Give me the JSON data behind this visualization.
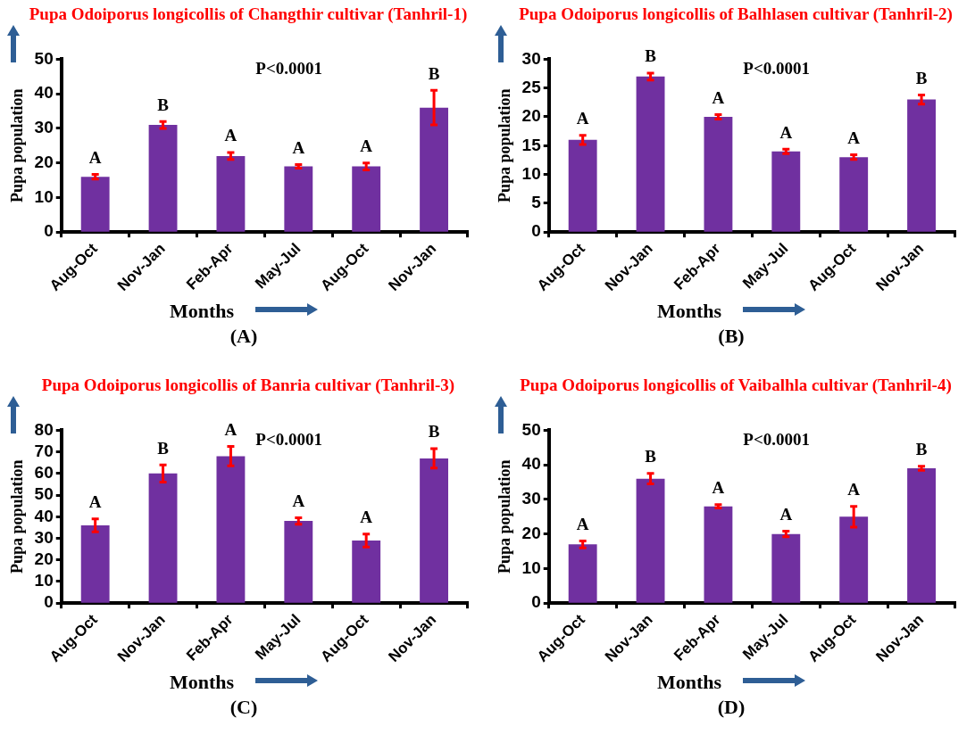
{
  "chart_data": [
    {
      "type": "bar",
      "title": "Pupa Odoiporus longicollis of Changthir cultivar (Tanhril-1)",
      "xlabel": "Months",
      "ylabel": "Pupa population",
      "categories": [
        "Aug-Oct",
        "Nov-Jan",
        "Feb-Apr",
        "May-Jul",
        "Aug-Oct",
        "Nov-Jan"
      ],
      "values": [
        16,
        31,
        22,
        19,
        19,
        36
      ],
      "errors": [
        0.7,
        1,
        1,
        0.5,
        1,
        5
      ],
      "value_labels": [
        "A",
        "B",
        "A",
        "A",
        "A",
        "B"
      ],
      "color": "#7030a0",
      "ylim": [
        0,
        50
      ],
      "yticks": [
        0,
        10,
        20,
        30,
        40,
        50
      ],
      "grid": false,
      "annotations": [
        "P<0.0001",
        "(A)"
      ]
    },
    {
      "type": "bar",
      "title": "Pupa Odoiporus longicollis of Balhlasen cultivar (Tanhril-2)",
      "xlabel": "Months",
      "ylabel": "Pupa population",
      "categories": [
        "Aug-Oct",
        "Nov-Jan",
        "Feb-Apr",
        "May-Jul",
        "Aug-Oct",
        "Nov-Jan"
      ],
      "values": [
        16,
        27,
        20,
        14,
        13,
        23
      ],
      "errors": [
        0.8,
        0.6,
        0.4,
        0.4,
        0.4,
        0.8
      ],
      "value_labels": [
        "A",
        "B",
        "A",
        "A",
        "A",
        "B"
      ],
      "color": "#7030a0",
      "ylim": [
        0,
        30
      ],
      "yticks": [
        0,
        5,
        10,
        15,
        20,
        25,
        30
      ],
      "grid": false,
      "annotations": [
        "P<0.0001",
        "(B)"
      ]
    },
    {
      "type": "bar",
      "title": "Pupa Odoiporus longicollis of Banria cultivar (Tanhril-3)",
      "xlabel": "Months",
      "ylabel": "Pupa population",
      "categories": [
        "Aug-Oct",
        "Nov-Jan",
        "Feb-Apr",
        "May-Jul",
        "Aug-Oct",
        "Nov-Jan"
      ],
      "values": [
        36,
        60,
        68,
        38,
        29,
        67
      ],
      "errors": [
        3,
        4,
        4.5,
        1.5,
        3,
        4.5
      ],
      "value_labels": [
        "A",
        "B",
        "A",
        "A",
        "A",
        "B"
      ],
      "color": "#7030a0",
      "ylim": [
        0,
        80
      ],
      "yticks": [
        0,
        10,
        20,
        30,
        40,
        50,
        60,
        70,
        80
      ],
      "grid": false,
      "annotations": [
        "P<0.0001",
        "(C)"
      ]
    },
    {
      "type": "bar",
      "title": "Pupa Odoiporus longicollis of Vaibalhla cultivar (Tanhril-4)",
      "xlabel": "Months",
      "ylabel": "Pupa population",
      "categories": [
        "Aug-Oct",
        "Nov-Jan",
        "Feb-Apr",
        "May-Jul",
        "Aug-Oct",
        "Nov-Jan"
      ],
      "values": [
        17,
        36,
        28,
        20,
        25,
        39
      ],
      "errors": [
        1,
        1.5,
        0.5,
        0.8,
        3,
        0.6
      ],
      "value_labels": [
        "A",
        "B",
        "A",
        "A",
        "A",
        "B"
      ],
      "color": "#7030a0",
      "ylim": [
        0,
        50
      ],
      "yticks": [
        0,
        10,
        20,
        30,
        40,
        50
      ],
      "grid": false,
      "annotations": [
        "P<0.0001",
        "(D)"
      ]
    }
  ]
}
